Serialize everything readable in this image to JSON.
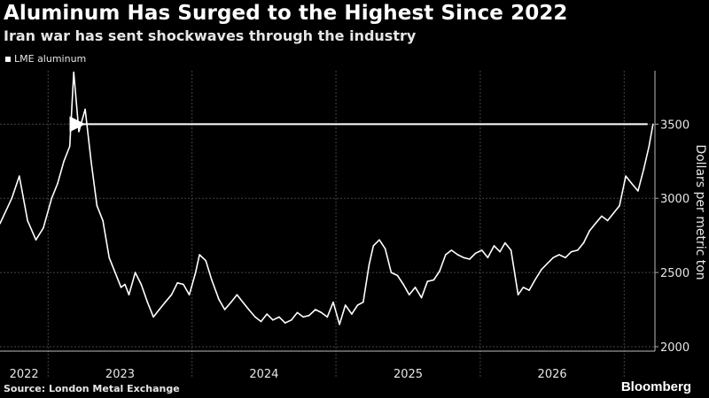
{
  "header": {
    "title": "Aluminum Has Surged to the Highest Since 2022",
    "subtitle": "Iran war has sent shockwaves through the industry"
  },
  "footer": {
    "source": "Source: London Metal Exchange",
    "brand": "Bloomberg"
  },
  "chart_data": {
    "type": "line",
    "title": "Aluminum Has Surged to the Highest Since 2022",
    "subtitle": "Iran war has sent shockwaves through the industry",
    "xlabel": "",
    "ylabel": "Dollars per metric ton",
    "ylim": [
      1970,
      3860
    ],
    "xlim": [
      "2021-09-01",
      "2026-03-20"
    ],
    "yticks": [
      2000,
      2500,
      3000,
      3500
    ],
    "xtick_labels": [
      "2022",
      "2023",
      "2024",
      "2025",
      "2026"
    ],
    "x_gridlines": [
      "2022-01-01",
      "2023-01-01",
      "2024-01-01",
      "2025-01-01",
      "2026-01-01"
    ],
    "grid": true,
    "legend_placement": "top-left",
    "colors": {
      "line": "#ffffff",
      "grid": "#444444",
      "background": "#000000"
    },
    "annotation": {
      "type": "arrow",
      "description": "horizontal arrow from latest value pointing back to early 2022 peak",
      "from_x": "2026-03-15",
      "to_x": "2022-03-15",
      "y": 3500
    },
    "series": [
      {
        "name": "LME aluminum",
        "x": [
          "2021-09-01",
          "2021-10-01",
          "2021-10-20",
          "2021-11-10",
          "2021-12-01",
          "2021-12-20",
          "2022-01-10",
          "2022-01-25",
          "2022-02-10",
          "2022-02-25",
          "2022-03-07",
          "2022-03-20",
          "2022-04-05",
          "2022-04-20",
          "2022-05-05",
          "2022-05-20",
          "2022-06-05",
          "2022-06-20",
          "2022-07-05",
          "2022-07-15",
          "2022-07-25",
          "2022-08-10",
          "2022-08-25",
          "2022-09-10",
          "2022-09-25",
          "2022-10-10",
          "2022-10-25",
          "2022-11-10",
          "2022-11-25",
          "2022-12-10",
          "2022-12-25",
          "2023-01-10",
          "2023-01-20",
          "2023-02-05",
          "2023-02-20",
          "2023-03-10",
          "2023-03-25",
          "2023-04-10",
          "2023-04-25",
          "2023-05-10",
          "2023-05-25",
          "2023-06-10",
          "2023-06-25",
          "2023-07-10",
          "2023-07-25",
          "2023-08-10",
          "2023-08-25",
          "2023-09-10",
          "2023-09-25",
          "2023-10-10",
          "2023-10-25",
          "2023-11-10",
          "2023-11-25",
          "2023-12-10",
          "2023-12-25",
          "2024-01-10",
          "2024-01-25",
          "2024-02-10",
          "2024-02-25",
          "2024-03-10",
          "2024-03-25",
          "2024-04-05",
          "2024-04-20",
          "2024-05-05",
          "2024-05-20",
          "2024-06-05",
          "2024-06-20",
          "2024-07-05",
          "2024-07-20",
          "2024-08-05",
          "2024-08-20",
          "2024-09-05",
          "2024-09-20",
          "2024-10-05",
          "2024-10-20",
          "2024-11-05",
          "2024-11-20",
          "2024-12-05",
          "2024-12-20",
          "2025-01-05",
          "2025-01-20",
          "2025-02-05",
          "2025-02-20",
          "2025-03-05",
          "2025-03-20",
          "2025-04-07",
          "2025-04-20",
          "2025-05-05",
          "2025-05-20",
          "2025-06-05",
          "2025-06-20",
          "2025-07-05",
          "2025-07-20",
          "2025-08-05",
          "2025-08-20",
          "2025-09-05",
          "2025-09-20",
          "2025-10-05",
          "2025-10-20",
          "2025-11-05",
          "2025-11-20",
          "2025-12-05",
          "2025-12-20",
          "2026-01-05",
          "2026-01-20",
          "2026-02-05",
          "2026-02-20",
          "2026-03-05",
          "2026-03-15"
        ],
        "values": [
          2830,
          3000,
          3150,
          2850,
          2720,
          2800,
          3000,
          3100,
          3250,
          3350,
          3850,
          3450,
          3600,
          3250,
          2950,
          2850,
          2600,
          2500,
          2400,
          2420,
          2350,
          2500,
          2420,
          2300,
          2200,
          2250,
          2300,
          2350,
          2430,
          2420,
          2350,
          2500,
          2620,
          2580,
          2450,
          2320,
          2250,
          2300,
          2350,
          2300,
          2250,
          2200,
          2170,
          2220,
          2180,
          2200,
          2160,
          2180,
          2230,
          2200,
          2210,
          2250,
          2230,
          2200,
          2300,
          2150,
          2280,
          2220,
          2280,
          2300,
          2550,
          2680,
          2720,
          2660,
          2500,
          2480,
          2420,
          2350,
          2400,
          2330,
          2440,
          2450,
          2510,
          2620,
          2650,
          2620,
          2600,
          2590,
          2630,
          2650,
          2600,
          2680,
          2640,
          2700,
          2650,
          2350,
          2400,
          2380,
          2450,
          2520,
          2560,
          2600,
          2620,
          2600,
          2640,
          2650,
          2700,
          2780,
          2830,
          2880,
          2850,
          2900,
          2950,
          3150,
          3100,
          3050,
          3200,
          3350,
          3500
        ]
      }
    ]
  }
}
